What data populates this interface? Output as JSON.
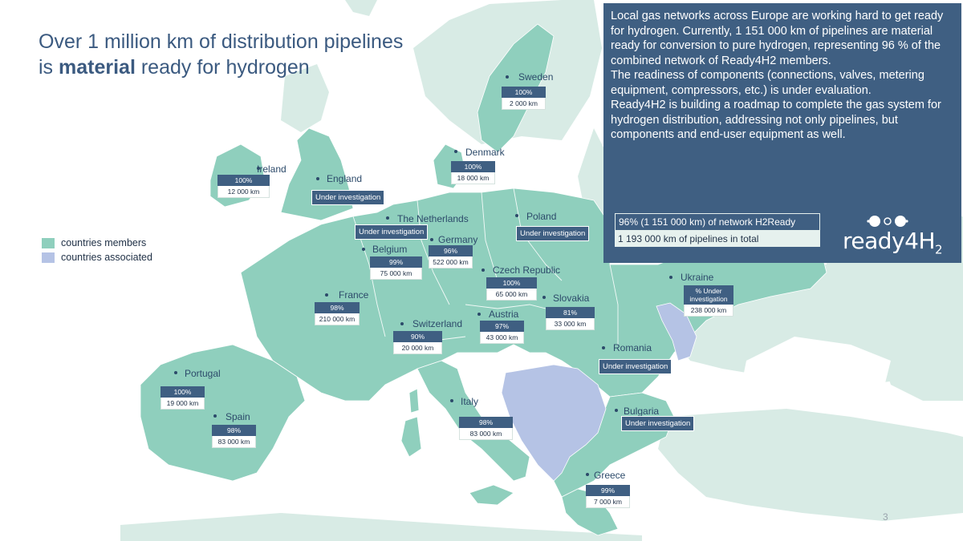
{
  "title": {
    "line1": "Over 1 million km of distribution pipelines",
    "line2_prefix": "is ",
    "line2_bold": "material",
    "line2_suffix": " ready for hydrogen"
  },
  "info": {
    "paragraphs": [
      "Local gas networks across Europe are working hard to get ready for hydrogen. Currently, 1 151 000 km of pipelines are material ready for conversion to pure hydrogen, representing 96 % of the combined network of Ready4H2 members.",
      "The readiness of components  (connections, valves, metering equipment, compressors, etc.) is under evaluation.",
      "Ready4H2 is building a roadmap to complete the gas system for hydrogen distribution, addressing not only pipelines, but components and end-user equipment as well."
    ],
    "summary_ready": "96% (1 151 000 km) of network H2Ready",
    "summary_total": "1 193 000 km of pipelines in total",
    "logo_text": "ready4H",
    "logo_sub": "2"
  },
  "legend": {
    "members": "countries members",
    "associated": "countries associated",
    "members_color": "#8fcfbd",
    "associated_color": "#b5c3e5"
  },
  "colors": {
    "sea": "#ffffff",
    "land_other": "#d8ebe5",
    "members": "#8fcfbd",
    "associated": "#b5c3e5",
    "label_dark": "#3f5f82"
  },
  "countries": {
    "sweden": {
      "name": "Sweden",
      "pct": "100%",
      "km": "2 000 km"
    },
    "denmark": {
      "name": "Denmark",
      "pct": "100%",
      "km": "18 000 km"
    },
    "ireland": {
      "name": "Ireland",
      "pct": "100%",
      "km": "12 000 km"
    },
    "england": {
      "name": "England",
      "status": "Under investigation"
    },
    "netherlands": {
      "name": "The Netherlands",
      "status": "Under investigation"
    },
    "poland": {
      "name": "Poland",
      "status": "Under investigation"
    },
    "germany": {
      "name": "Germany",
      "pct": "96%",
      "km": "522 000 km"
    },
    "belgium": {
      "name": "Belgium",
      "pct": "99%",
      "km": "75 000 km"
    },
    "czech": {
      "name": "Czech Republic",
      "pct": "100%",
      "km": "65 000 km"
    },
    "ukraine": {
      "name": "Ukraine",
      "pct": "% Under investigation",
      "km": "238 000 km"
    },
    "france": {
      "name": "France",
      "pct": "98%",
      "km": "210 000 km"
    },
    "slovakia": {
      "name": "Slovakia",
      "pct": "81%",
      "km": "33 000 km"
    },
    "austria": {
      "name": "Austria",
      "pct": "97%",
      "km": "43 000 km"
    },
    "switzerland": {
      "name": "Switzerland",
      "pct": "90%",
      "km": "20 000 km"
    },
    "romania": {
      "name": "Romania",
      "status": "Under investigation"
    },
    "portugal": {
      "name": "Portugal",
      "pct": "100%",
      "km": "19 000 km"
    },
    "italy": {
      "name": "Italy",
      "pct": "98%",
      "km": "83 000 km"
    },
    "bulgaria": {
      "name": "Bulgaria",
      "status": "Under investigation"
    },
    "spain": {
      "name": "Spain",
      "pct": "98%",
      "km": "83 000 km"
    },
    "greece": {
      "name": "Greece",
      "pct": "99%",
      "km": "7 000 km"
    }
  },
  "page_number": "3"
}
